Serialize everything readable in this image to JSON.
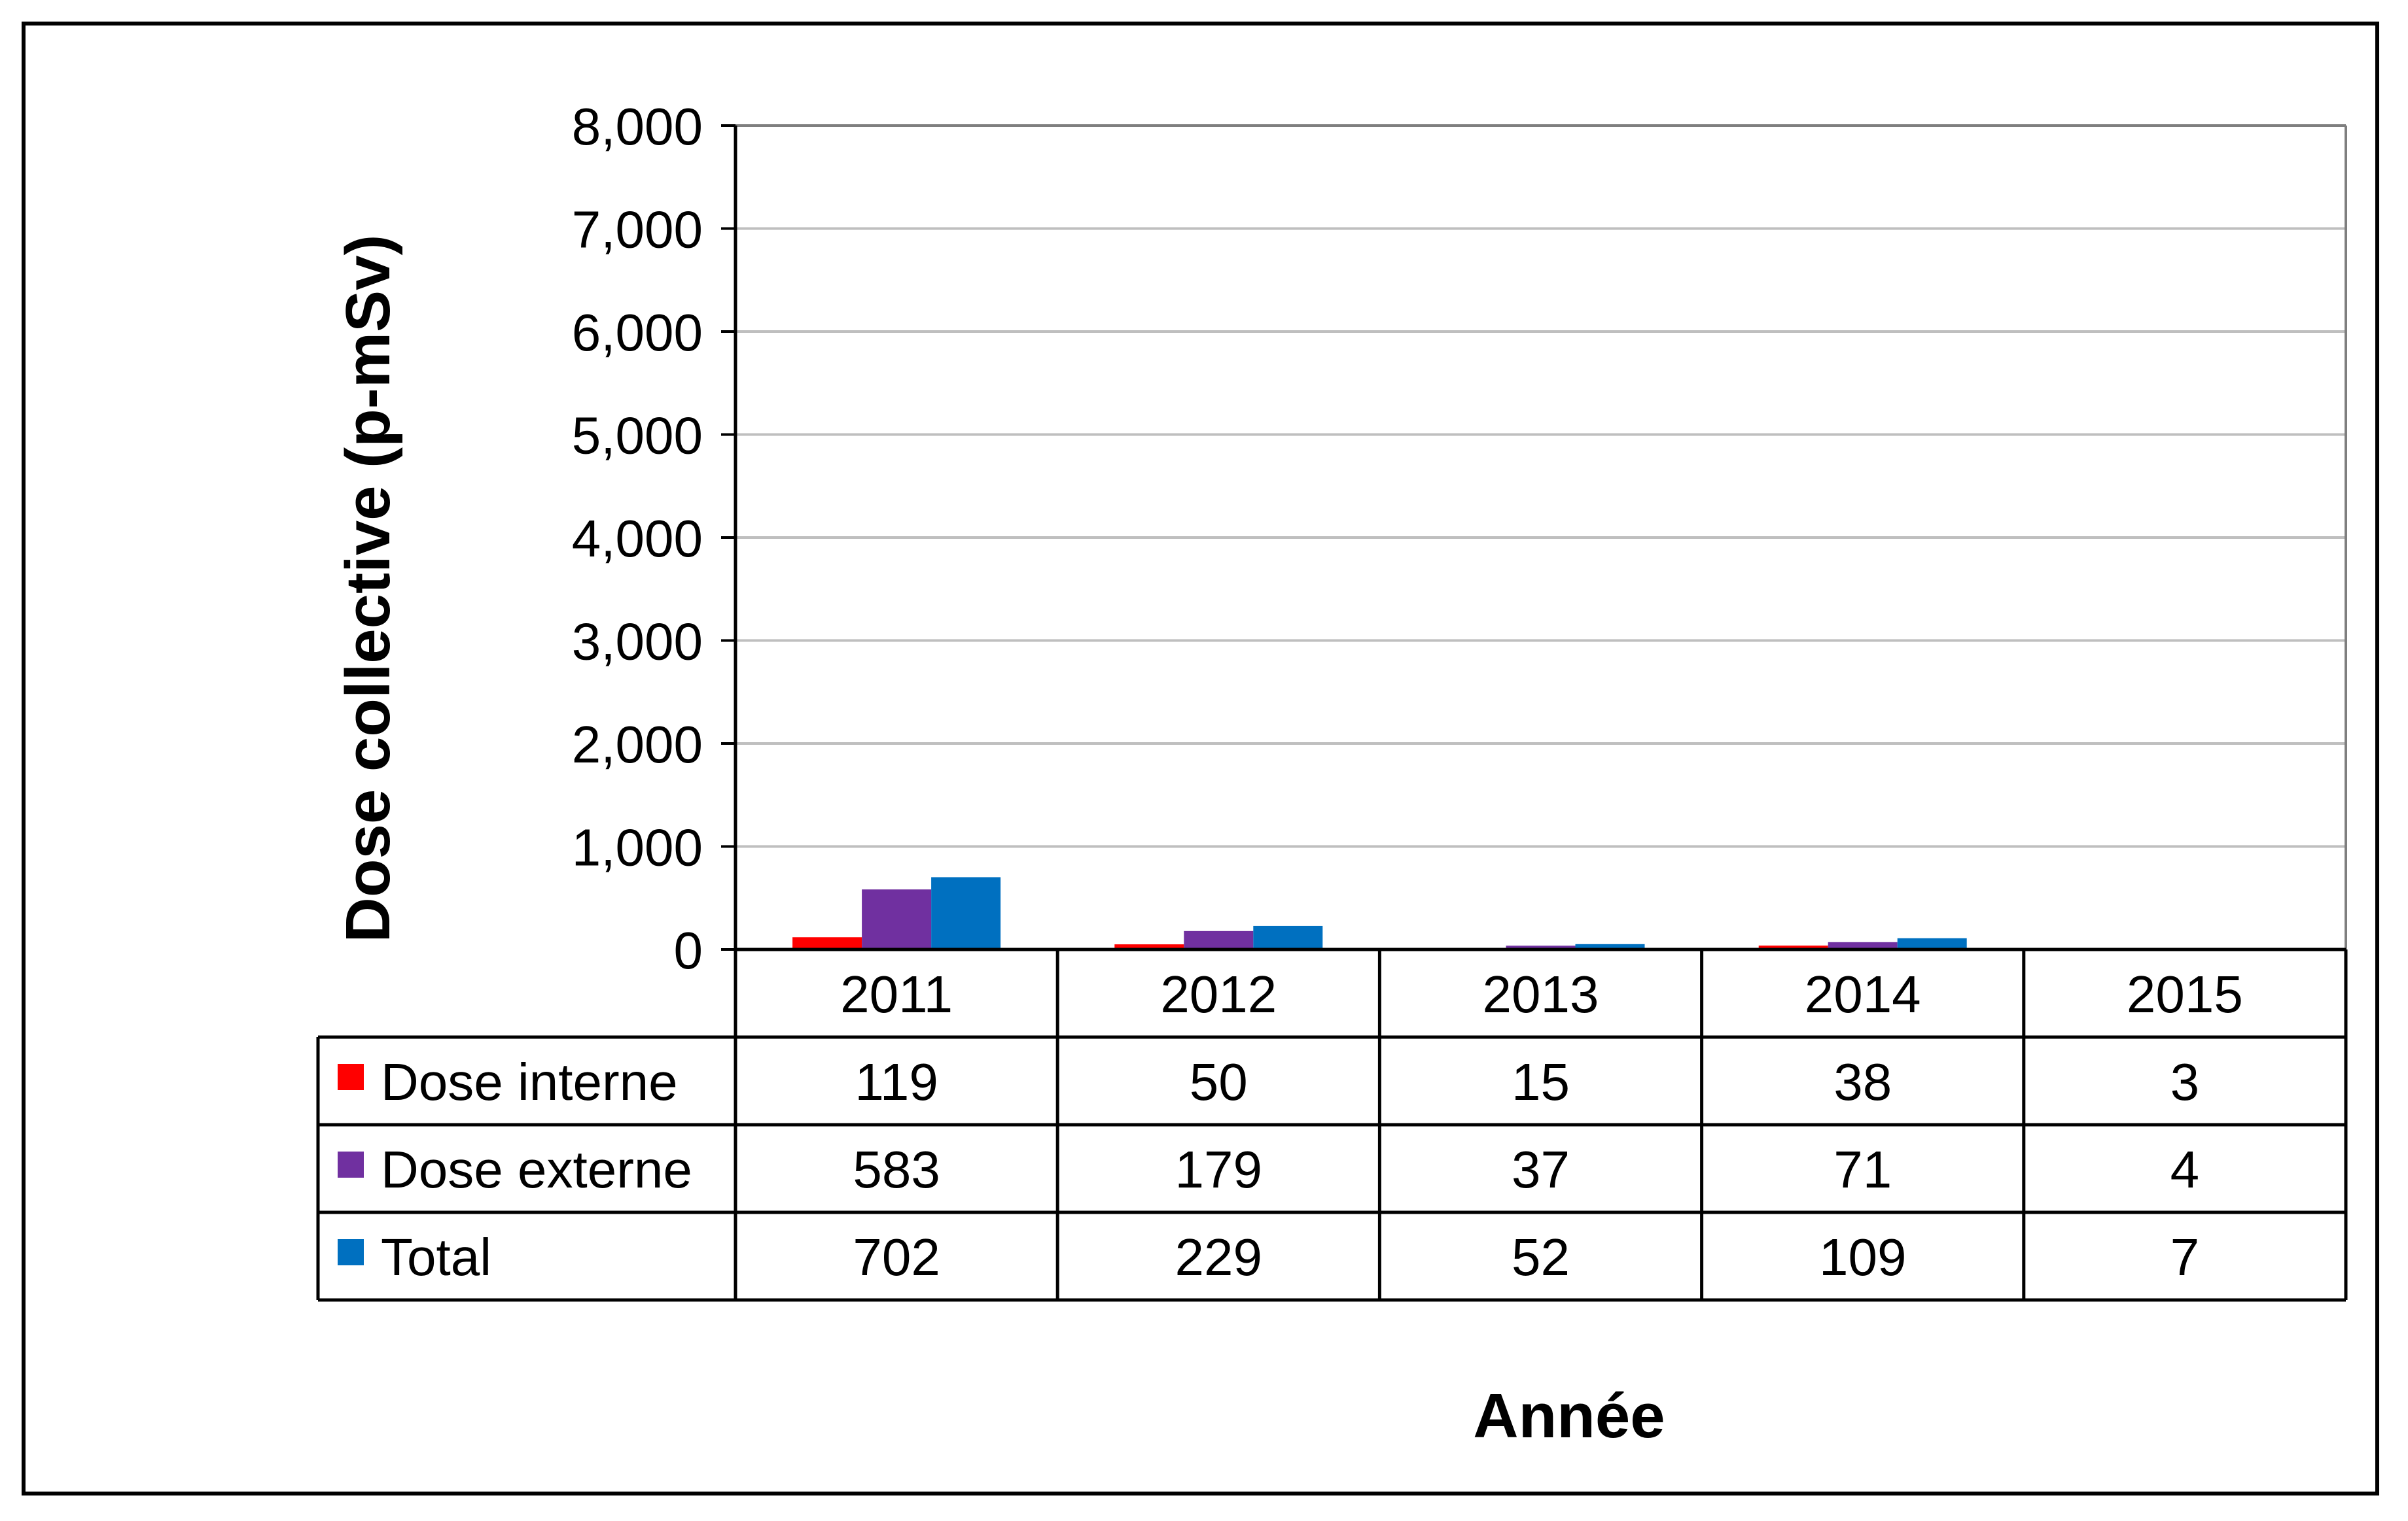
{
  "chart_data": {
    "type": "bar",
    "title": "",
    "xlabel": "Année",
    "ylabel": "Dose collective (p-mSv)",
    "ylim": [
      0,
      8000
    ],
    "yticks": [
      0,
      1000,
      2000,
      3000,
      4000,
      5000,
      6000,
      7000,
      8000
    ],
    "ytick_labels": [
      "0",
      "1,000",
      "2,000",
      "3,000",
      "4,000",
      "5,000",
      "6,000",
      "7,000",
      "8,000"
    ],
    "grid": true,
    "legend_placement": "data-table-left",
    "categories": [
      "2011",
      "2012",
      "2013",
      "2014",
      "2015"
    ],
    "series": [
      {
        "name": "Dose interne",
        "color": "#ff0000",
        "values": [
          119,
          50,
          15,
          38,
          3
        ]
      },
      {
        "name": "Dose externe",
        "color": "#7030a0",
        "values": [
          583,
          179,
          37,
          71,
          4
        ]
      },
      {
        "name": "Total",
        "color": "#0070c0",
        "values": [
          702,
          229,
          52,
          109,
          7
        ]
      }
    ]
  }
}
